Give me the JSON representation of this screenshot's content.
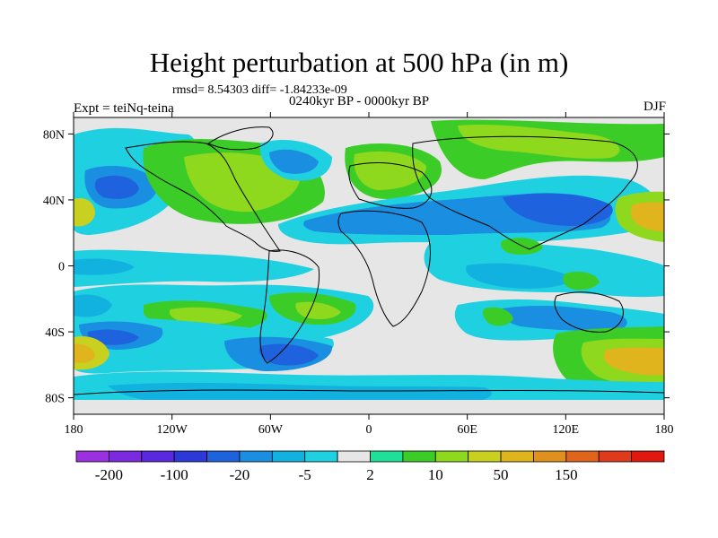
{
  "title": "Height perturbation at 500 hPa (in m)",
  "stats": "rmsd= 8.54303 diff= -1.84233e-09",
  "period": "0240kyr BP - 0000kyr BP",
  "experiment": "Expt = teiNq-teina",
  "season": "DJF",
  "lat_ticks": [
    {
      "label": "80N",
      "lat": 80
    },
    {
      "label": "40N",
      "lat": 40
    },
    {
      "label": "0",
      "lat": 0
    },
    {
      "label": "40S",
      "lat": -40
    },
    {
      "label": "80S",
      "lat": -80
    }
  ],
  "lon_ticks": [
    {
      "label": "180",
      "lon": -180
    },
    {
      "label": "120W",
      "lon": -120
    },
    {
      "label": "60W",
      "lon": -60
    },
    {
      "label": "0",
      "lon": 0
    },
    {
      "label": "60E",
      "lon": 60
    },
    {
      "label": "120E",
      "lon": 120
    },
    {
      "label": "180",
      "lon": 180
    }
  ],
  "colorbar": {
    "colors": [
      "#9b30e0",
      "#7b2ae0",
      "#5a28e0",
      "#2c38d8",
      "#1f62de",
      "#1a8ee0",
      "#12b2e0",
      "#1fd0e0",
      "#e6e6e6",
      "#20e098",
      "#3ccc28",
      "#8ed81e",
      "#c8d020",
      "#e0b41c",
      "#e0901c",
      "#e0641c",
      "#e03a1c",
      "#e01810"
    ],
    "labels": [
      {
        "text": "-200",
        "index": 1
      },
      {
        "text": "-100",
        "index": 3
      },
      {
        "text": "-20",
        "index": 5
      },
      {
        "text": "-5",
        "index": 7
      },
      {
        "text": "2",
        "index": 9
      },
      {
        "text": "10",
        "index": 11
      },
      {
        "text": "50",
        "index": 13
      },
      {
        "text": "150",
        "index": 15
      }
    ]
  },
  "fields": {
    "neutral": "#e6e6e6",
    "cyan": "#1fd0e0",
    "light_blue": "#12b2e0",
    "blue": "#1a8ee0",
    "dark_blue": "#1f62de",
    "teal": "#20e098",
    "green": "#3ccc28",
    "yellow_green": "#8ed81e",
    "yellow": "#c8d020",
    "orange": "#e0b41c"
  }
}
